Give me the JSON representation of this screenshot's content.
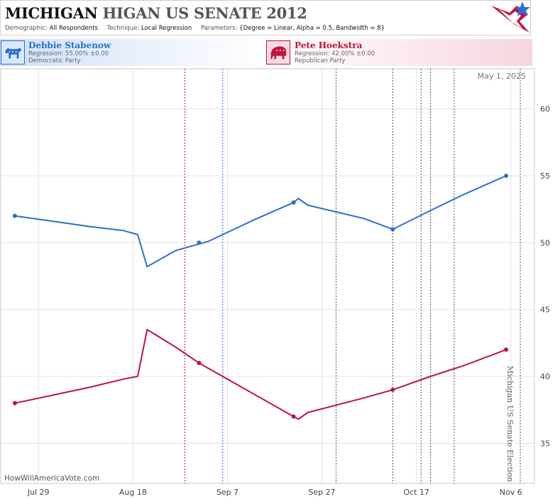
{
  "header": {
    "title_state": "MICHIGAN",
    "title_rest": "HIGAN US SENATE 2012",
    "demographic_label": "Demographic:",
    "demographic_value": "All Respondents",
    "technique_label": "Technique:",
    "technique_value": "Local Regression",
    "parameters_label": "Parameters:",
    "parameters_value": "{Degree = Linear, Alpha = 0.5, Bandwidth = 8}"
  },
  "candidates": {
    "dem": {
      "name": "Debbie Stabenow",
      "regression": "Regression: 55.00% ±0.00",
      "party": "Democratic Party",
      "color": "#2a6fd1"
    },
    "rep": {
      "name": "Pete Hoekstra",
      "regression": "Regression: 42.00% ±0.00",
      "party": "Republican Party",
      "color": "#c0143c"
    }
  },
  "footer": {
    "site": "HowWillAmericaVote.com"
  },
  "chart_data": {
    "type": "line",
    "date_label": "May 1, 2025",
    "event_label": "Michigan US Senate Election",
    "x_range": [
      "2012-07-21",
      "2012-11-11"
    ],
    "x_ticks": [
      {
        "date": "2012-07-29",
        "label": "Jul 29"
      },
      {
        "date": "2012-08-18",
        "label": "Aug 18"
      },
      {
        "date": "2012-09-07",
        "label": "Sep 7"
      },
      {
        "date": "2012-09-27",
        "label": "Sep 27"
      },
      {
        "date": "2012-10-17",
        "label": "Oct 17"
      },
      {
        "date": "2012-11-06",
        "label": "Nov 6"
      }
    ],
    "ylim": [
      32,
      63
    ],
    "y_ticks": [
      35,
      40,
      45,
      50,
      55,
      60
    ],
    "grid": true,
    "series": [
      {
        "name": "Debbie Stabenow",
        "color": "#2a6fd1",
        "line": [
          [
            "2012-07-24",
            52.0
          ],
          [
            "2012-08-01",
            51.6
          ],
          [
            "2012-08-09",
            51.2
          ],
          [
            "2012-08-16",
            50.9
          ],
          [
            "2012-08-19",
            50.6
          ],
          [
            "2012-08-21",
            48.2
          ],
          [
            "2012-08-27",
            49.4
          ],
          [
            "2012-09-03",
            50.1
          ],
          [
            "2012-09-12",
            51.6
          ],
          [
            "2012-09-21",
            53.0
          ],
          [
            "2012-09-22",
            53.3
          ],
          [
            "2012-09-24",
            52.8
          ],
          [
            "2012-10-06",
            51.8
          ],
          [
            "2012-10-12",
            51.0
          ],
          [
            "2012-10-20",
            52.4
          ],
          [
            "2012-10-27",
            53.6
          ],
          [
            "2012-11-05",
            55.0
          ]
        ],
        "points": [
          [
            "2012-07-24",
            52.0
          ],
          [
            "2012-09-01",
            50.0
          ],
          [
            "2012-09-21",
            53.0
          ],
          [
            "2012-10-12",
            51.0
          ],
          [
            "2012-11-05",
            55.0
          ]
        ]
      },
      {
        "name": "Pete Hoekstra",
        "color": "#c0143c",
        "line": [
          [
            "2012-07-24",
            38.0
          ],
          [
            "2012-08-01",
            38.6
          ],
          [
            "2012-08-09",
            39.2
          ],
          [
            "2012-08-16",
            39.8
          ],
          [
            "2012-08-19",
            40.0
          ],
          [
            "2012-08-21",
            43.5
          ],
          [
            "2012-08-27",
            42.2
          ],
          [
            "2012-09-01",
            41.0
          ],
          [
            "2012-09-09",
            39.4
          ],
          [
            "2012-09-21",
            37.0
          ],
          [
            "2012-09-22",
            36.8
          ],
          [
            "2012-09-24",
            37.3
          ],
          [
            "2012-10-06",
            38.4
          ],
          [
            "2012-10-12",
            39.0
          ],
          [
            "2012-10-20",
            40.0
          ],
          [
            "2012-10-27",
            40.8
          ],
          [
            "2012-11-05",
            42.0
          ]
        ],
        "points": [
          [
            "2012-07-24",
            38.0
          ],
          [
            "2012-09-01",
            41.0
          ],
          [
            "2012-09-21",
            37.0
          ],
          [
            "2012-10-12",
            39.0
          ],
          [
            "2012-11-05",
            42.0
          ]
        ]
      }
    ],
    "vlines": [
      {
        "date": "2012-08-29",
        "color": "#c0143c"
      },
      {
        "date": "2012-09-06",
        "color": "#2a6fd1"
      },
      {
        "date": "2012-09-30",
        "color": "#555555"
      },
      {
        "date": "2012-10-12",
        "color": "#555555"
      },
      {
        "date": "2012-10-18",
        "color": "#555555"
      },
      {
        "date": "2012-10-20",
        "color": "#555555"
      },
      {
        "date": "2012-10-25",
        "color": "#555555"
      },
      {
        "date": "2012-11-08",
        "color": "#555555"
      }
    ]
  }
}
